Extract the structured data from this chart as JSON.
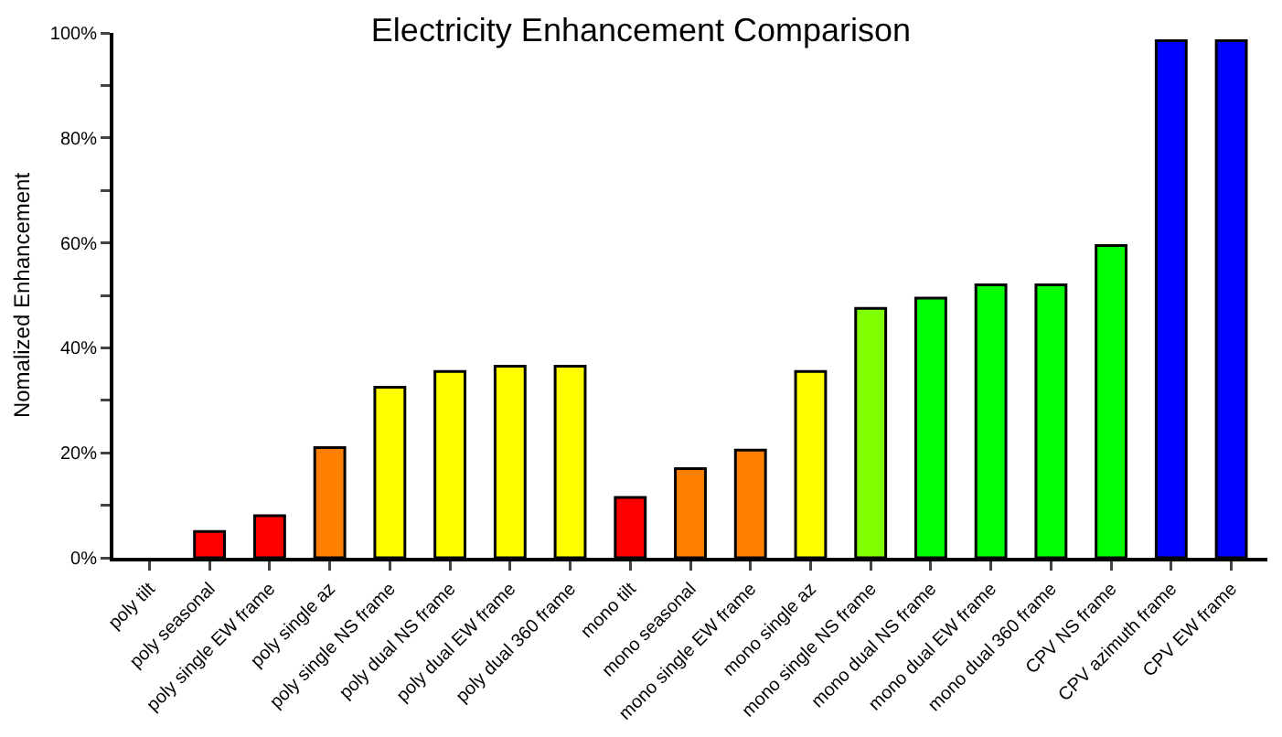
{
  "chart_data": {
    "type": "bar",
    "title": "Electricity Enhancement Comparison",
    "ylabel": "Nomalized Enhancement",
    "categories": [
      "poly tilt",
      "poly seasonal",
      "poly single EW frame",
      "poly single az",
      "poly single NS frame",
      "poly dual NS frame",
      "poly dual EW frame",
      "poly dual 360 frame",
      "mono tilt",
      "mono seasonal",
      "mono single EW frame",
      "mono single az",
      "mono single NS frame",
      "mono dual NS frame",
      "mono dual EW frame",
      "mono dual 360 frame",
      "CPV NS frame",
      "CPV azimuth frame",
      "CPV EW frame"
    ],
    "values": [
      0,
      5,
      8,
      21,
      32.5,
      35.5,
      36.5,
      36.5,
      11.5,
      17,
      20.5,
      35.5,
      47.5,
      49.5,
      52,
      52,
      59.5,
      98.5,
      98.5
    ],
    "colors": [
      "#ff0000",
      "#ff0000",
      "#ff0000",
      "#ff8000",
      "#ffff00",
      "#ffff00",
      "#ffff00",
      "#ffff00",
      "#ff0000",
      "#ff8000",
      "#ff8000",
      "#ffff00",
      "#80ff00",
      "#00ff00",
      "#00ff00",
      "#00ff00",
      "#00ff00",
      "#0000ff",
      "#0000ff"
    ],
    "ylim": [
      0,
      100
    ],
    "yticks": [
      {
        "value": 0,
        "label": "0%"
      },
      {
        "value": 10,
        "label": null
      },
      {
        "value": 20,
        "label": "20%"
      },
      {
        "value": 30,
        "label": null
      },
      {
        "value": 40,
        "label": "40%"
      },
      {
        "value": 50,
        "label": null
      },
      {
        "value": 60,
        "label": "60%"
      },
      {
        "value": 70,
        "label": null
      },
      {
        "value": 80,
        "label": "80%"
      },
      {
        "value": 90,
        "label": null
      },
      {
        "value": 100,
        "label": "100%"
      }
    ],
    "grid": false
  }
}
